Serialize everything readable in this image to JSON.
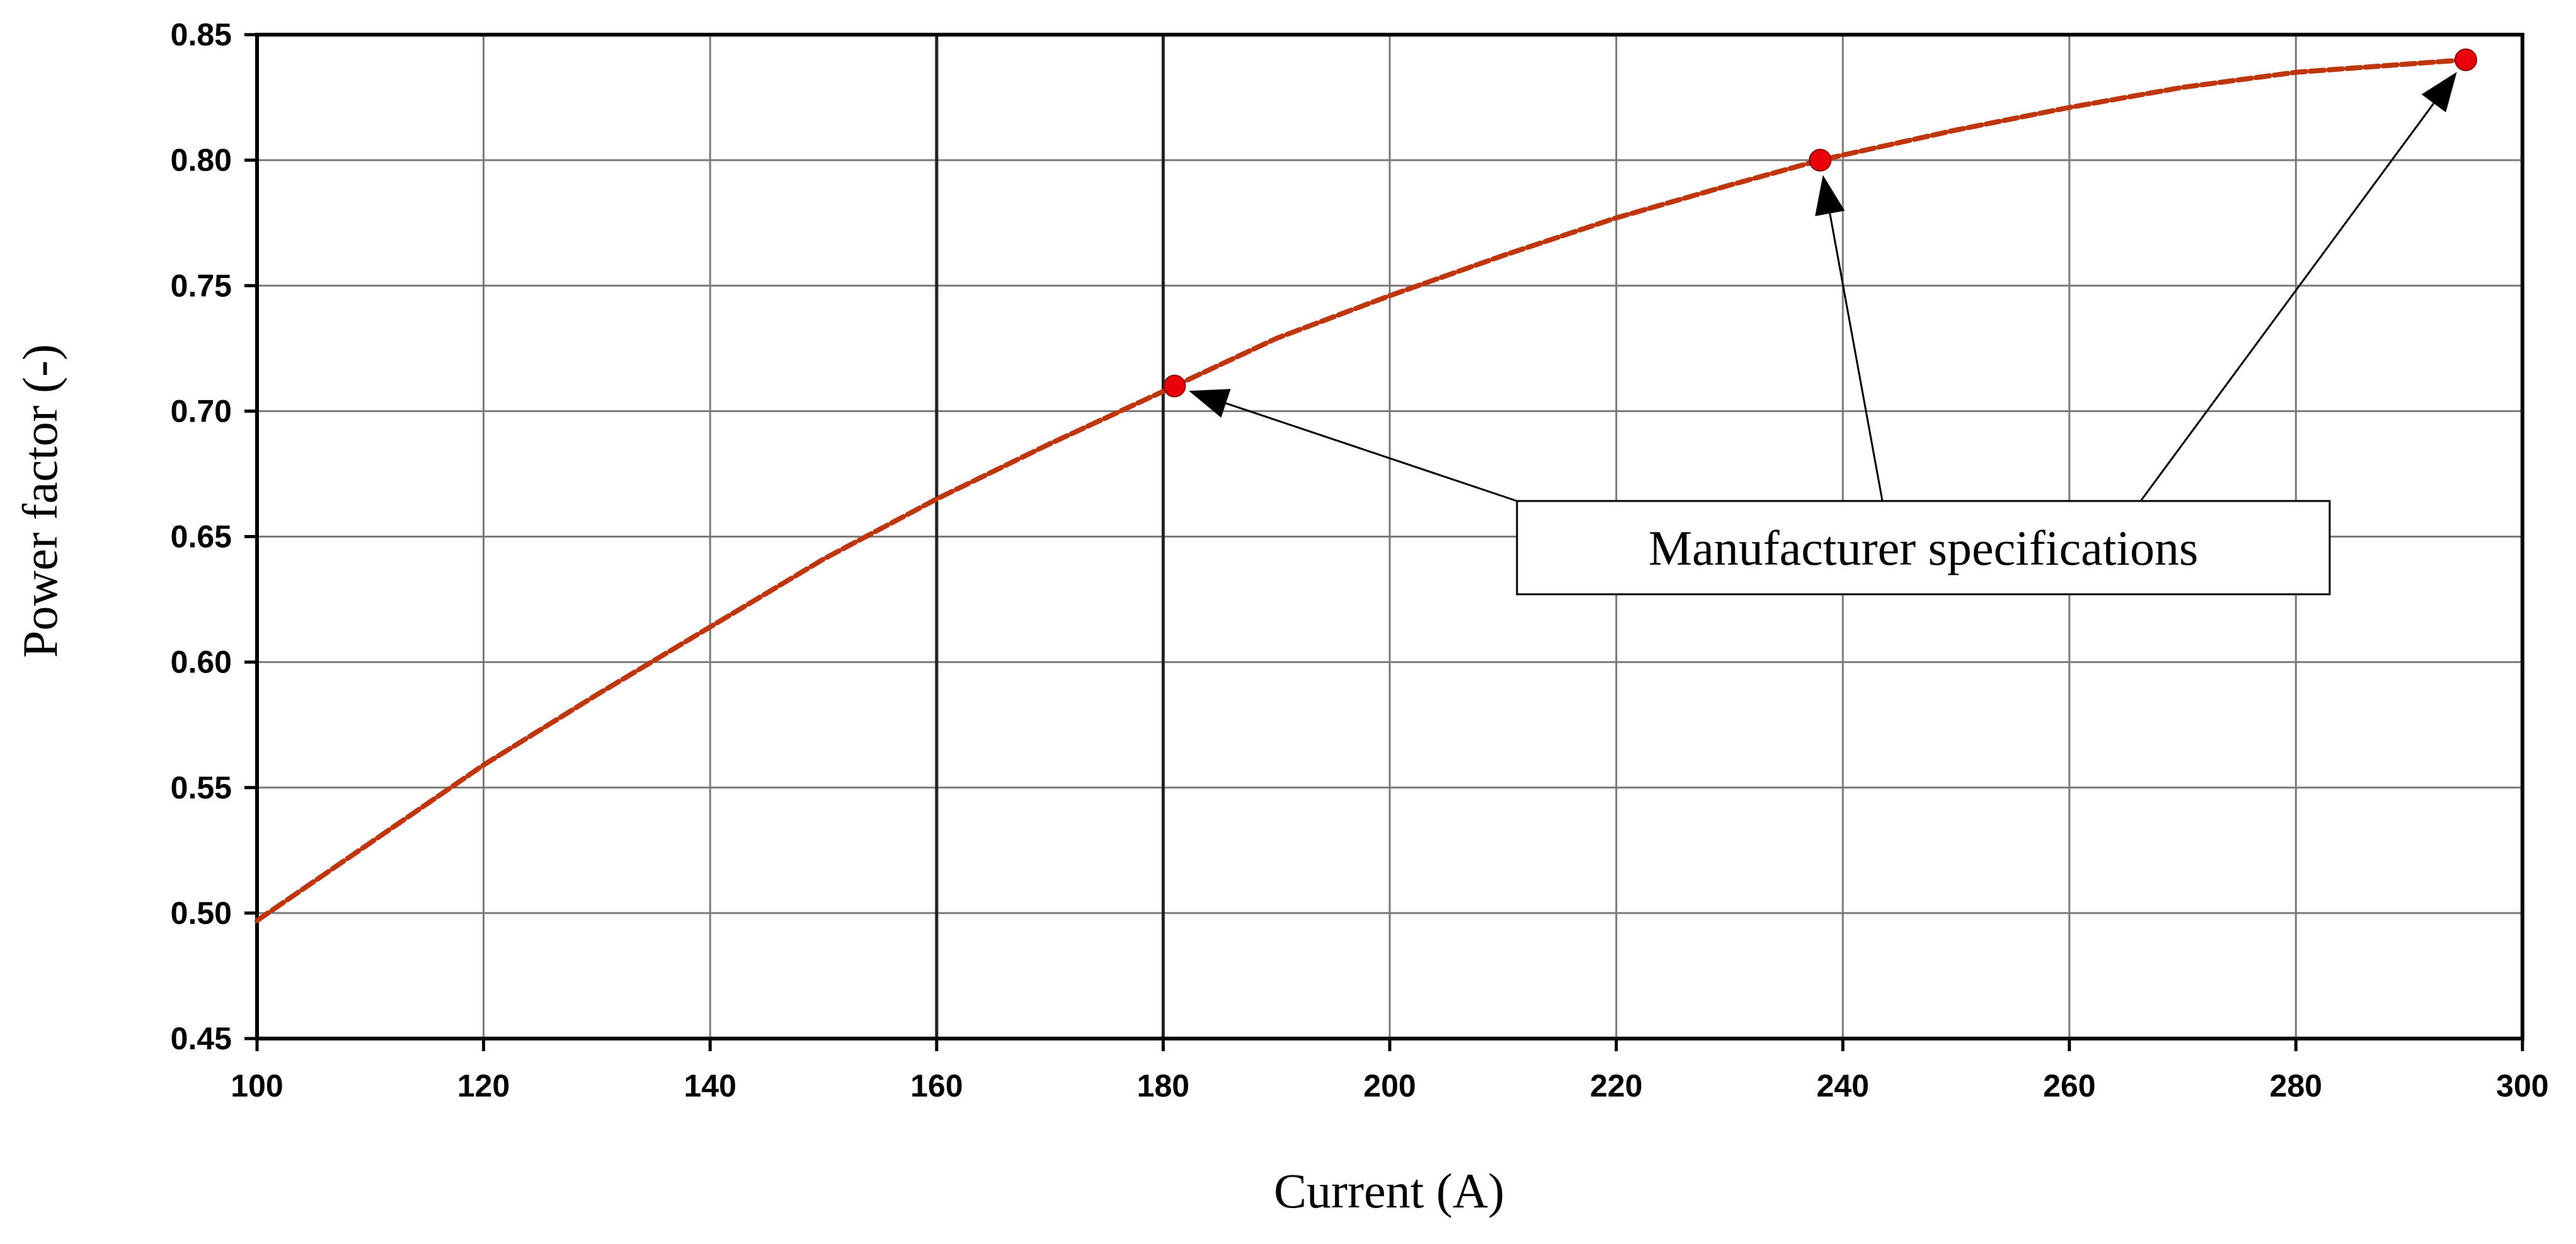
{
  "chart_data": {
    "type": "line",
    "title": "",
    "xlabel": "Current (A)",
    "ylabel": "Power factor (-)",
    "xlim": [
      100,
      300
    ],
    "ylim": [
      0.45,
      0.85
    ],
    "x_ticks": [
      100,
      120,
      140,
      160,
      180,
      200,
      220,
      240,
      260,
      280,
      300
    ],
    "x_tick_labels": [
      "100",
      "120",
      "140",
      "160",
      "180",
      "200",
      "220",
      "240",
      "260",
      "280",
      "300"
    ],
    "y_ticks": [
      0.45,
      0.5,
      0.55,
      0.6,
      0.65,
      0.7,
      0.75,
      0.8,
      0.85
    ],
    "y_tick_labels": [
      "0.45",
      "0.50",
      "0.55",
      "0.60",
      "0.65",
      "0.70",
      "0.75",
      "0.80",
      "0.85"
    ],
    "grid": true,
    "legend": "none",
    "series": [
      {
        "style": "dashed",
        "color": "#c0360c",
        "x": [
          100,
          110,
          120,
          130,
          140,
          150,
          160,
          170,
          181,
          190,
          200,
          210,
          220,
          230,
          238,
          250,
          260,
          270,
          280,
          295
        ],
        "y": [
          0.497,
          0.528,
          0.559,
          0.587,
          0.614,
          0.641,
          0.665,
          0.687,
          0.71,
          0.729,
          0.746,
          0.762,
          0.777,
          0.79,
          0.8,
          0.812,
          0.821,
          0.829,
          0.835,
          0.84
        ]
      }
    ],
    "markers": {
      "color": "#e8000b",
      "points": [
        {
          "x": 181,
          "y": 0.71
        },
        {
          "x": 238,
          "y": 0.8
        },
        {
          "x": 295,
          "y": 0.84
        }
      ]
    },
    "annotation": {
      "text": "Manufacturer specifications",
      "targets": [
        {
          "x": 181,
          "y": 0.71
        },
        {
          "x": 238,
          "y": 0.8
        },
        {
          "x": 295,
          "y": 0.84
        }
      ]
    }
  }
}
